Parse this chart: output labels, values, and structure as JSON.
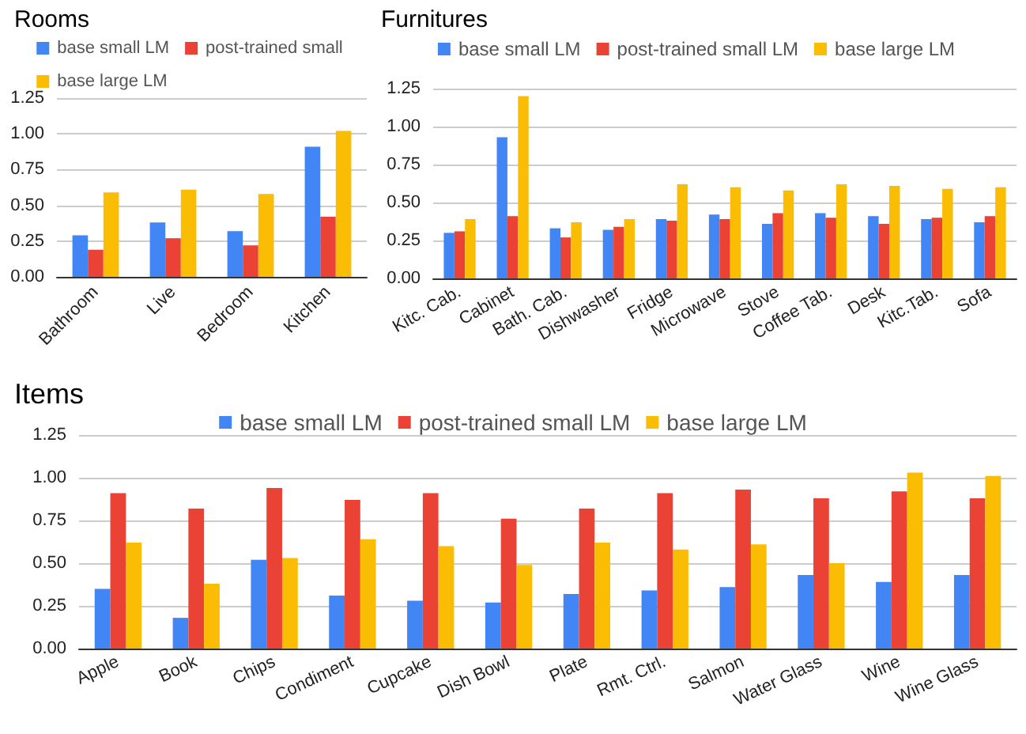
{
  "chart_data": [
    {
      "type": "bar",
      "title": "Rooms",
      "categories": [
        "Bathroom",
        "Live",
        "Bedroom",
        "Kitchen"
      ],
      "series": [
        {
          "name": "base small LM",
          "color": "#4285f4",
          "values": [
            0.29,
            0.38,
            0.32,
            0.91
          ]
        },
        {
          "name": "post-trained small",
          "color": "#ea4335",
          "values": [
            0.19,
            0.27,
            0.22,
            0.42
          ]
        },
        {
          "name": "base large LM",
          "color": "#fbbc04",
          "values": [
            0.59,
            0.61,
            0.58,
            1.02
          ]
        }
      ],
      "ylim": [
        0,
        1.25
      ],
      "yticks": [
        {
          "value": 0,
          "label": "0.00"
        },
        {
          "value": 0.25,
          "label": "0.25"
        },
        {
          "value": 0.5,
          "label": "0.50"
        },
        {
          "value": 0.75,
          "label": "0.75"
        },
        {
          "value": 1,
          "label": "1.00"
        },
        {
          "value": 1.25,
          "label": "1.25"
        }
      ],
      "grid": "y",
      "legend": "top"
    },
    {
      "type": "bar",
      "title": "Furnitures",
      "categories": [
        "Kitc. Cab.",
        "Cabinet",
        "Bath. Cab.",
        "Dishwasher",
        "Fridge",
        "Microwave",
        "Stove",
        "Coffee Tab.",
        "Desk",
        "Kitc.Tab.",
        "Sofa"
      ],
      "series": [
        {
          "name": "base small LM",
          "color": "#4285f4",
          "values": [
            0.3,
            0.93,
            0.33,
            0.32,
            0.39,
            0.42,
            0.36,
            0.43,
            0.41,
            0.39,
            0.37
          ]
        },
        {
          "name": "post-trained small LM",
          "color": "#ea4335",
          "values": [
            0.31,
            0.41,
            0.27,
            0.34,
            0.38,
            0.39,
            0.43,
            0.4,
            0.36,
            0.4,
            0.41
          ]
        },
        {
          "name": "base large LM",
          "color": "#fbbc04",
          "values": [
            0.39,
            1.2,
            0.37,
            0.39,
            0.62,
            0.6,
            0.58,
            0.62,
            0.61,
            0.59,
            0.6
          ]
        }
      ],
      "ylim": [
        0,
        1.25
      ],
      "yticks": [
        {
          "value": 0,
          "label": "0.00"
        },
        {
          "value": 0.25,
          "label": "0.25"
        },
        {
          "value": 0.5,
          "label": "0.50"
        },
        {
          "value": 0.75,
          "label": "0.75"
        },
        {
          "value": 1,
          "label": "1.00"
        },
        {
          "value": 1.25,
          "label": "1.25"
        }
      ],
      "grid": "y",
      "legend": "top"
    },
    {
      "type": "bar",
      "title": "Items",
      "categories": [
        "Apple",
        "Book",
        "Chips",
        "Condiment",
        "Cupcake",
        "Dish Bowl",
        "Plate",
        "Rmt. Ctrl.",
        "Salmon",
        "Water Glass",
        "Wine",
        "Wine Glass"
      ],
      "series": [
        {
          "name": "base small LM",
          "color": "#4285f4",
          "values": [
            0.35,
            0.18,
            0.52,
            0.31,
            0.28,
            0.27,
            0.32,
            0.34,
            0.36,
            0.43,
            0.39,
            0.43
          ]
        },
        {
          "name": "post-trained small LM",
          "color": "#ea4335",
          "values": [
            0.91,
            0.82,
            0.94,
            0.87,
            0.91,
            0.76,
            0.82,
            0.91,
            0.93,
            0.88,
            0.92,
            0.88
          ]
        },
        {
          "name": "base large LM",
          "color": "#fbbc04",
          "values": [
            0.62,
            0.38,
            0.53,
            0.64,
            0.6,
            0.49,
            0.62,
            0.58,
            0.61,
            0.5,
            1.03,
            1.01
          ]
        }
      ],
      "ylim": [
        0,
        1.25
      ],
      "yticks": [
        {
          "value": 0,
          "label": "0.00"
        },
        {
          "value": 0.25,
          "label": "0.25"
        },
        {
          "value": 0.5,
          "label": "0.50"
        },
        {
          "value": 0.75,
          "label": "0.75"
        },
        {
          "value": 1,
          "label": "1.00"
        },
        {
          "value": 1.25,
          "label": "1.25"
        }
      ],
      "grid": "y",
      "legend": "top"
    }
  ]
}
